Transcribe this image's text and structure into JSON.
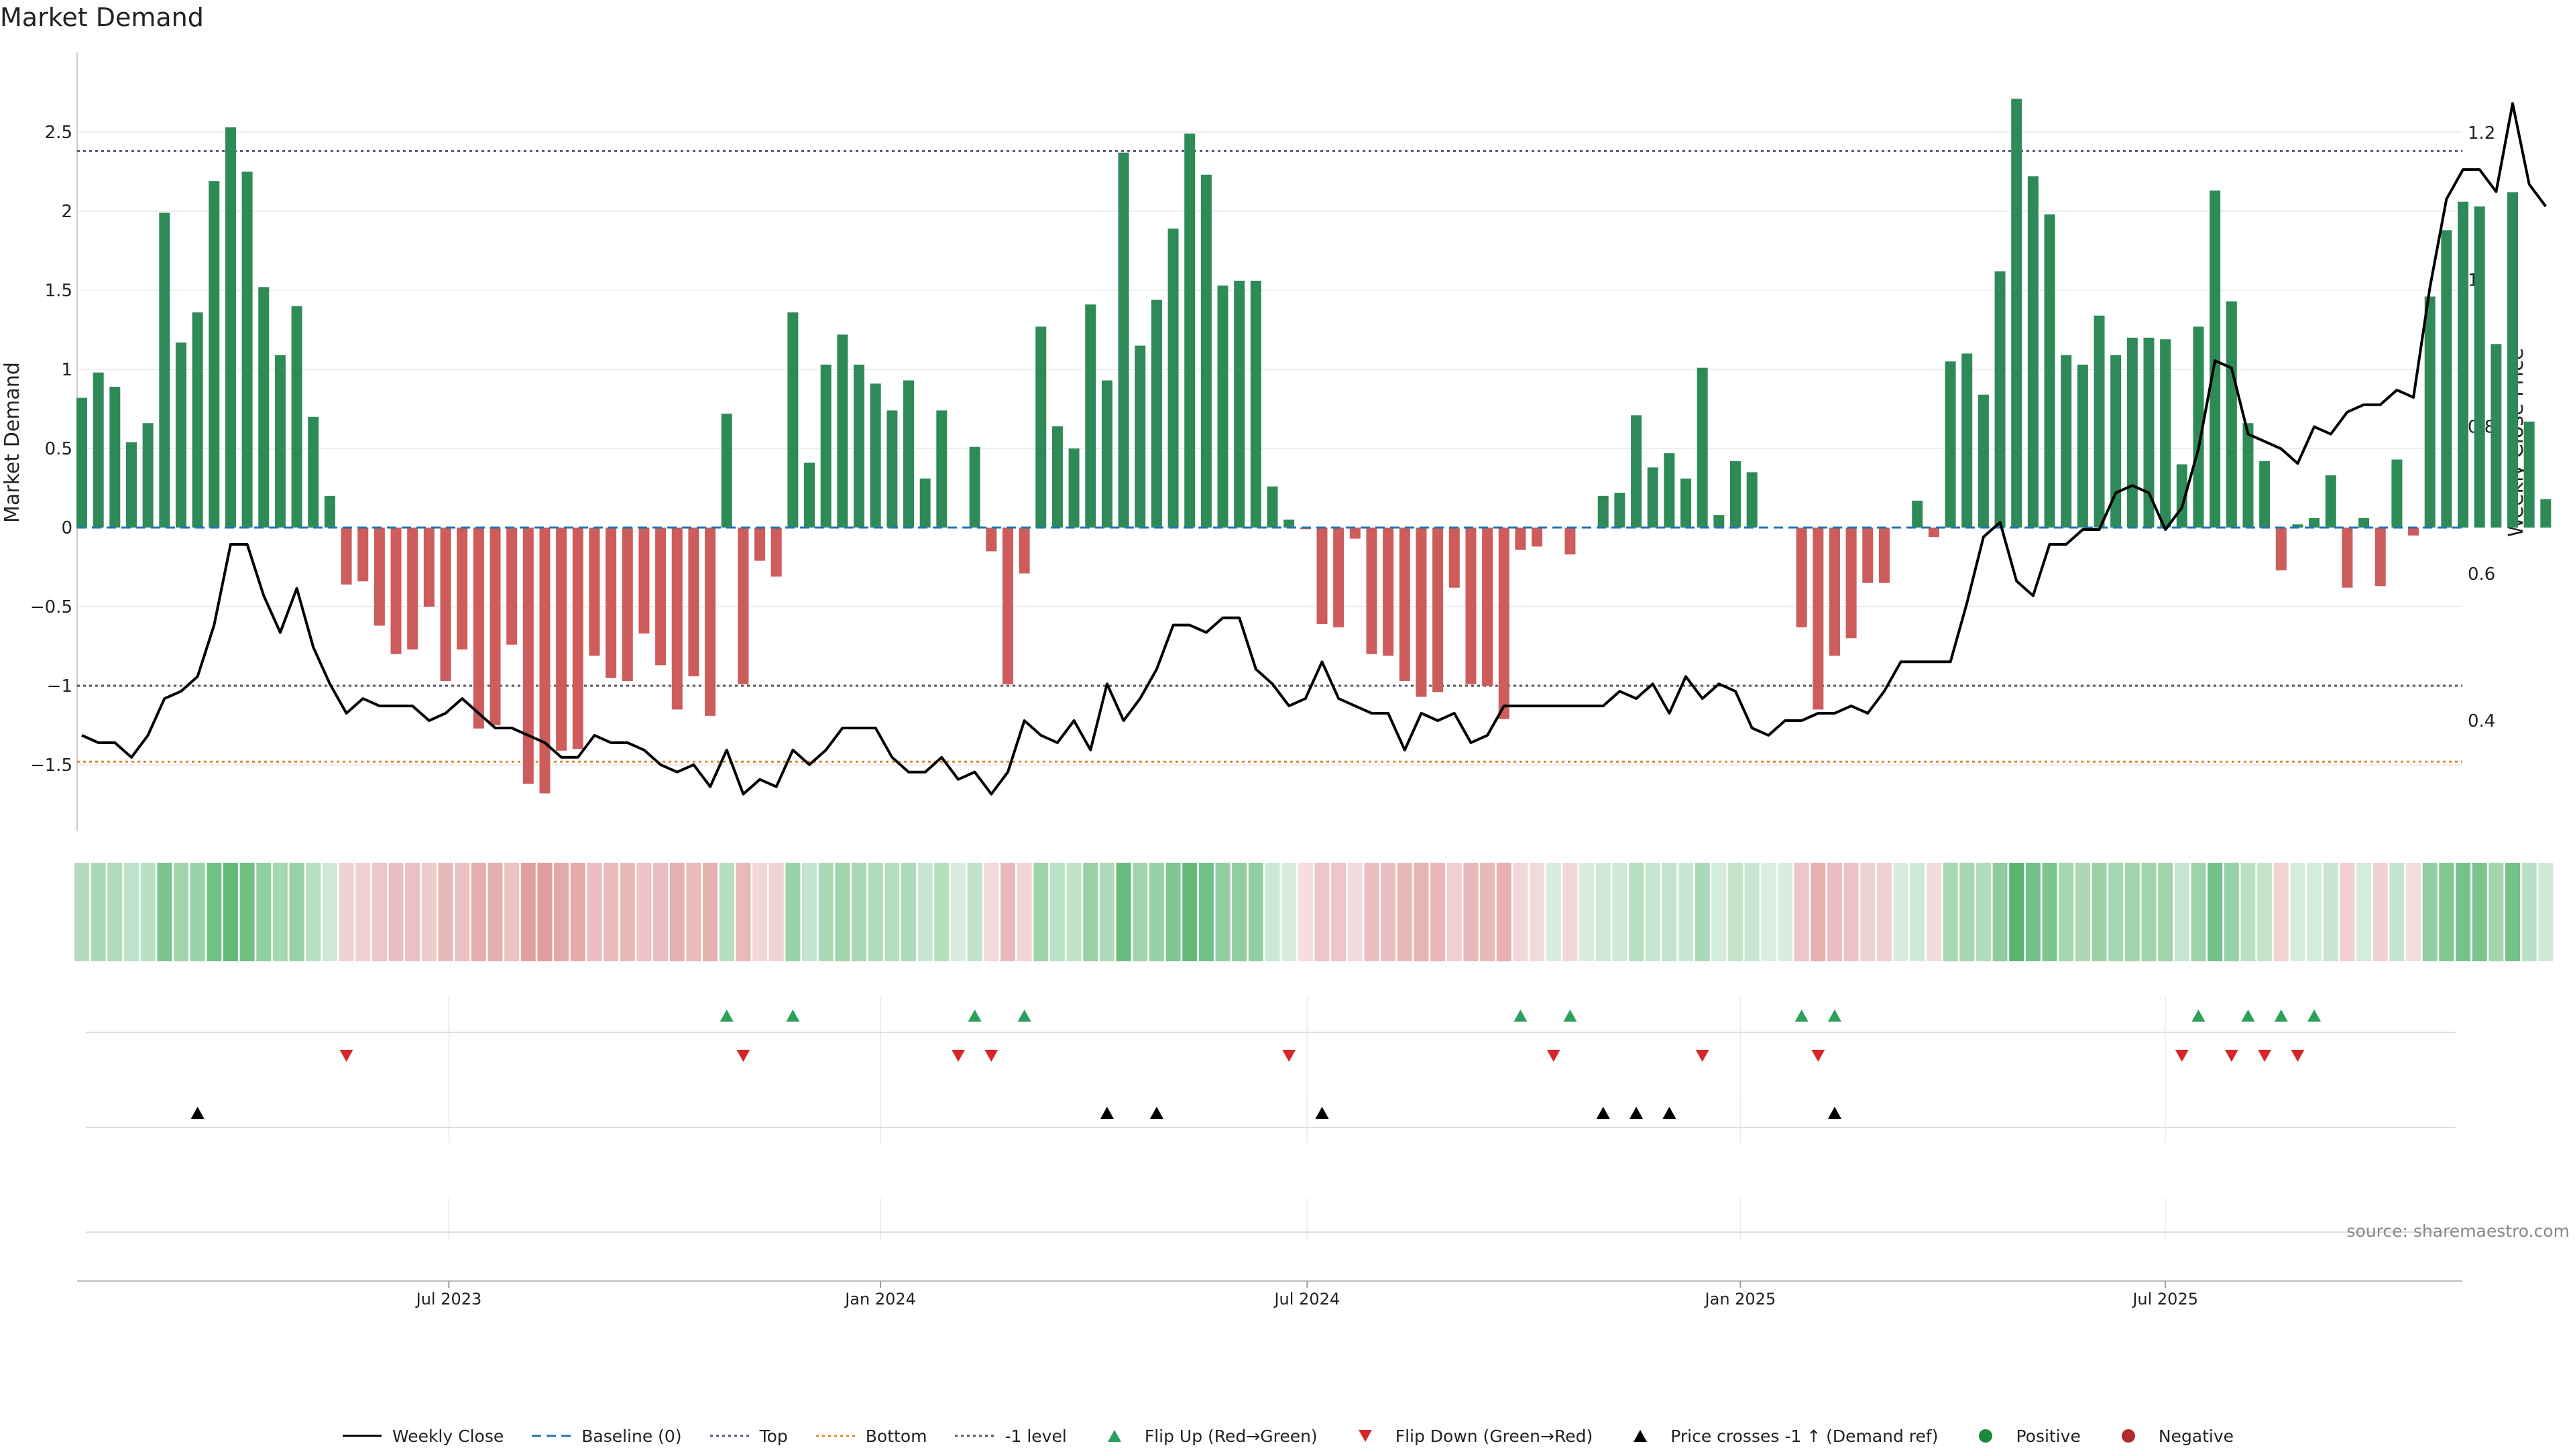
{
  "chart_data": {
    "type": "bar",
    "title": "Market Demand",
    "ylabel": "Market Demand",
    "y2label": "Weekly Close Price",
    "ylim": [
      -1.95,
      2.95
    ],
    "y2lim": [
      0.23,
      1.29
    ],
    "yticks": [
      "2.5",
      "2",
      "1.5",
      "1",
      "0.5",
      "0",
      "−0.5",
      "−1",
      "−1.5"
    ],
    "y2ticks": [
      "1.2",
      "1",
      "0.8",
      "0.6",
      "0.4"
    ],
    "hlines": {
      "top": 2.38,
      "minus1": -1.0,
      "bottom": -1.48
    },
    "xticks": [
      {
        "label": "Jul 2023",
        "week": 22.2
      },
      {
        "label": "Jan 2024",
        "week": 48.3
      },
      {
        "label": "Jul 2024",
        "week": 74.1
      },
      {
        "label": "Jan 2025",
        "week": 100.3
      },
      {
        "label": "Jul 2025",
        "week": 126.0
      }
    ],
    "series": [
      {
        "name": "Market Demand",
        "values": [
          0.82,
          0.98,
          0.89,
          0.54,
          0.66,
          1.99,
          1.17,
          1.36,
          2.19,
          2.53,
          2.25,
          1.52,
          1.09,
          1.4,
          0.7,
          0.2,
          -0.36,
          -0.34,
          -0.62,
          -0.8,
          -0.77,
          -0.5,
          -0.97,
          -0.77,
          -1.27,
          -1.25,
          -0.74,
          -1.62,
          -1.68,
          -1.41,
          -1.4,
          -0.81,
          -0.95,
          -0.97,
          -0.67,
          -0.87,
          -1.15,
          -0.94,
          -1.19,
          0.72,
          -0.99,
          -0.21,
          -0.31,
          1.36,
          0.41,
          1.03,
          1.22,
          1.03,
          0.91,
          0.74,
          0.93,
          0.31,
          0.74,
          0.0,
          0.51,
          -0.15,
          -0.99,
          -0.29,
          1.27,
          0.64,
          0.5,
          1.41,
          0.93,
          2.37,
          1.15,
          1.44,
          1.89,
          2.49,
          2.23,
          1.53,
          1.56,
          1.56,
          0.26,
          0.05,
          -0.01,
          -0.61,
          -0.63,
          -0.07,
          -0.8,
          -0.81,
          -0.97,
          -1.07,
          -1.04,
          -0.38,
          -0.99,
          -1.0,
          -1.21,
          -0.14,
          -0.12,
          0.0,
          -0.17,
          0.0,
          0.2,
          0.22,
          0.71,
          0.38,
          0.47,
          0.31,
          1.01,
          0.08,
          0.42,
          0.35,
          0.0,
          0.0,
          -0.63,
          -1.15,
          -0.81,
          -0.7,
          -0.35,
          -0.35,
          0.0,
          0.17,
          -0.06,
          1.05,
          1.1,
          0.84,
          1.62,
          2.71,
          2.22,
          1.98,
          1.09,
          1.03,
          1.34,
          1.09,
          1.2,
          1.2,
          1.19,
          0.4,
          1.27,
          2.13,
          1.43,
          0.66,
          0.42,
          -0.27,
          0.02,
          0.06,
          0.33,
          -0.38,
          0.06,
          -0.37,
          0.43,
          -0.05,
          1.46,
          1.88,
          2.06,
          2.03,
          1.16,
          2.12,
          0.67,
          0.18
        ]
      },
      {
        "name": "Weekly Close",
        "values": [
          0.38,
          0.37,
          0.37,
          0.35,
          0.38,
          0.43,
          0.44,
          0.46,
          0.53,
          0.64,
          0.64,
          0.57,
          0.52,
          0.58,
          0.5,
          0.45,
          0.41,
          0.43,
          0.42,
          0.42,
          0.42,
          0.4,
          0.41,
          0.43,
          0.41,
          0.39,
          0.39,
          0.38,
          0.37,
          0.35,
          0.35,
          0.38,
          0.37,
          0.37,
          0.36,
          0.34,
          0.33,
          0.34,
          0.31,
          0.36,
          0.3,
          0.32,
          0.31,
          0.36,
          0.34,
          0.36,
          0.39,
          0.39,
          0.39,
          0.35,
          0.33,
          0.33,
          0.35,
          0.32,
          0.33,
          0.3,
          0.33,
          0.4,
          0.38,
          0.37,
          0.4,
          0.36,
          0.45,
          0.4,
          0.43,
          0.47,
          0.53,
          0.53,
          0.52,
          0.54,
          0.54,
          0.47,
          0.45,
          0.42,
          0.43,
          0.48,
          0.43,
          0.42,
          0.41,
          0.41,
          0.36,
          0.41,
          0.4,
          0.41,
          0.37,
          0.38,
          0.42,
          0.42,
          0.42,
          0.42,
          0.42,
          0.42,
          0.42,
          0.44,
          0.43,
          0.45,
          0.41,
          0.46,
          0.43,
          0.45,
          0.44,
          0.39,
          0.38,
          0.4,
          0.4,
          0.41,
          0.41,
          0.42,
          0.41,
          0.44,
          0.48,
          0.48,
          0.48,
          0.48,
          0.56,
          0.65,
          0.67,
          0.59,
          0.57,
          0.64,
          0.64,
          0.66,
          0.66,
          0.71,
          0.72,
          0.71,
          0.66,
          0.69,
          0.77,
          0.89,
          0.88,
          0.79,
          0.78,
          0.77,
          0.75,
          0.8,
          0.79,
          0.82,
          0.83,
          0.83,
          0.85,
          0.84,
          0.99,
          1.11,
          1.15,
          1.15,
          1.12,
          1.24,
          1.13,
          1.1
        ]
      }
    ],
    "flip_up_weeks": [
      39,
      43,
      54,
      57,
      87,
      90,
      104,
      106,
      128,
      131,
      133,
      135
    ],
    "flip_down_weeks": [
      16,
      40,
      53,
      55,
      73,
      89,
      98,
      105,
      127,
      130,
      132,
      134
    ],
    "price_cross_weeks": [
      7,
      62,
      65,
      75,
      92,
      94,
      96,
      106
    ],
    "legend": [
      {
        "label": "Weekly Close",
        "kind": "solid",
        "color": "#000000"
      },
      {
        "label": "Baseline (0)",
        "kind": "dash",
        "color": "#1f77b4"
      },
      {
        "label": "Top",
        "kind": "dot",
        "color": "#555577"
      },
      {
        "label": "Bottom",
        "kind": "dot",
        "color": "#e08a2a"
      },
      {
        "label": "-1 level",
        "kind": "dot",
        "color": "#555555"
      },
      {
        "label": "Flip Up (Red→Green)",
        "kind": "tri-up",
        "color": "#2ca05a"
      },
      {
        "label": "Flip Down (Green→Red)",
        "kind": "tri-down",
        "color": "#d62728"
      },
      {
        "label": "Price crosses -1 ↑ (Demand ref)",
        "kind": "tri-up",
        "color": "#000000"
      },
      {
        "label": "Positive",
        "kind": "circle",
        "color": "#1a8a3a"
      },
      {
        "label": "Negative",
        "kind": "circle",
        "color": "#b22a2a"
      }
    ],
    "source": "source: sharemaestro.com"
  },
  "colors": {
    "positive_bar": "#2e8b57",
    "negative_bar": "#cd5c5c",
    "price_line": "#000000",
    "baseline": "#1f77b4",
    "top": "#555577",
    "bottom": "#e08a2a",
    "minus1": "#555555",
    "heat_pos": "#4caf64",
    "heat_neg": "#d06a6a"
  }
}
